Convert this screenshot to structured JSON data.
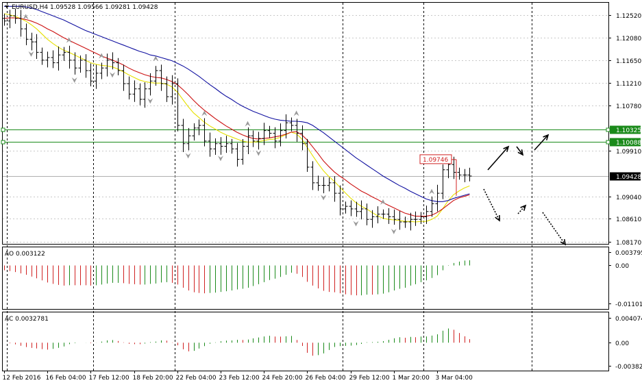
{
  "chart_data": {
    "type": "candlestick",
    "symbol_header": "EURUSD,H4  1.09528 1.09566 1.09281 1.09428",
    "price_axis": {
      "ticks": [
        "1.12520",
        "1.12080",
        "1.11650",
        "1.11210",
        "1.10780",
        "1.09910",
        "1.09040",
        "1.08610",
        "1.08170"
      ],
      "tick_values": [
        1.1252,
        1.1208,
        1.1165,
        1.1121,
        1.1078,
        1.0991,
        1.0904,
        1.0861,
        1.0817
      ],
      "ylim": [
        1.0813,
        1.1275
      ]
    },
    "time_axis": {
      "labels": [
        "12 Feb 2016",
        "16 Feb 04:00",
        "17 Feb 12:00",
        "18 Feb 20:00",
        "22 Feb 04:00",
        "23 Feb 12:00",
        "24 Feb 20:00",
        "26 Feb 04:00",
        "29 Feb 12:00",
        "1 Mar 20:00",
        "3 Mar 04:00"
      ],
      "label_bar_index": [
        0,
        8,
        16,
        24,
        32,
        40,
        48,
        56,
        64,
        72,
        80
      ],
      "bar_count": 87
    },
    "levels": [
      {
        "label": "1.10325",
        "value": 1.10325,
        "color": "#1a8a1a"
      },
      {
        "label": "1.10088",
        "value": 1.10088,
        "color": "#1a8a1a"
      }
    ],
    "current_price": {
      "label": "1.09428",
      "value": 1.09428
    },
    "annotation": {
      "label": "1.09746",
      "value": 1.09746,
      "color": "#d02020"
    },
    "candles_close": [
      1.124,
      1.125,
      1.1245,
      1.1225,
      1.1205,
      1.12,
      1.118,
      1.1165,
      1.117,
      1.116,
      1.1175,
      1.118,
      1.1165,
      1.115,
      1.1165,
      1.1145,
      1.1125,
      1.114,
      1.115,
      1.1165,
      1.116,
      1.1145,
      1.112,
      1.11,
      1.111,
      1.109,
      1.111,
      1.1125,
      1.1145,
      1.112,
      1.1095,
      1.112,
      1.104,
      1.1005,
      1.102,
      1.1035,
      1.104,
      1.101,
      1.0995,
      1.1005,
      1.1,
      1.1005,
      1.0995,
      1.0975,
      1.1,
      1.102,
      1.101,
      1.1015,
      1.103,
      1.1025,
      1.101,
      1.103,
      1.1045,
      1.104,
      1.1025,
      1.1005,
      1.096,
      1.093,
      1.0925,
      1.0925,
      1.093,
      1.091,
      1.088,
      1.0885,
      1.088,
      1.0875,
      1.088,
      1.086,
      1.0865,
      1.087,
      1.087,
      1.0865,
      1.086,
      1.0855,
      1.0855,
      1.086,
      1.086,
      1.0865,
      1.0875,
      1.089,
      1.091,
      1.0955,
      1.0965,
      1.095,
      1.0945,
      1.0945,
      1.0943
    ],
    "series": [
      {
        "name": "",
        "color": "#e6e000",
        "values": [
          1.1254,
          1.1252,
          1.1249,
          1.1245,
          1.124,
          1.1233,
          1.1225,
          1.1215,
          1.1205,
          1.1197,
          1.119,
          1.1184,
          1.118,
          1.1175,
          1.117,
          1.1165,
          1.116,
          1.1157,
          1.1155,
          1.1154,
          1.1152,
          1.1148,
          1.1143,
          1.1137,
          1.1132,
          1.1127,
          1.1124,
          1.1122,
          1.1121,
          1.1121,
          1.1119,
          1.1114,
          1.1104,
          1.109,
          1.1076,
          1.1064,
          1.1055,
          1.1046,
          1.1039,
          1.1033,
          1.1027,
          1.1022,
          1.1018,
          1.1014,
          1.101,
          1.1008,
          1.1008,
          1.1009,
          1.1011,
          1.1013,
          1.1014,
          1.1017,
          1.1022,
          1.1027,
          1.1024,
          1.1014,
          1.0998,
          1.0982,
          1.0967,
          1.0953,
          1.0942,
          1.0933,
          1.0922,
          1.0911,
          1.0901,
          1.0892,
          1.0885,
          1.088,
          1.0873,
          1.0867,
          1.0862,
          1.086,
          1.0859,
          1.0858,
          1.0856,
          1.0856,
          1.0855,
          1.0856,
          1.0856,
          1.086,
          1.0866,
          1.088,
          1.0895,
          1.0907,
          1.0914,
          1.092,
          1.0924
        ]
      },
      {
        "name": "",
        "color": "#cc1010",
        "values": [
          1.1245,
          1.1246,
          1.1246,
          1.1245,
          1.1243,
          1.124,
          1.1236,
          1.1231,
          1.1225,
          1.122,
          1.1214,
          1.1208,
          1.1203,
          1.1198,
          1.1193,
          1.1188,
          1.1183,
          1.1178,
          1.1173,
          1.1169,
          1.1165,
          1.1161,
          1.1156,
          1.115,
          1.1145,
          1.1141,
          1.1137,
          1.1134,
          1.1132,
          1.1131,
          1.1128,
          1.1124,
          1.1118,
          1.1109,
          1.1099,
          1.1088,
          1.1078,
          1.1069,
          1.1061,
          1.1053,
          1.1046,
          1.1039,
          1.1033,
          1.1027,
          1.1022,
          1.1018,
          1.1015,
          1.1014,
          1.1015,
          1.1016,
          1.1018,
          1.102,
          1.1023,
          1.1027,
          1.1028,
          1.1022,
          1.1012,
          1.0999,
          1.0986,
          1.0972,
          1.0961,
          1.0951,
          1.0943,
          1.0936,
          1.0928,
          1.0921,
          1.0914,
          1.0909,
          1.0903,
          1.0898,
          1.0892,
          1.0887,
          1.0882,
          1.0877,
          1.0872,
          1.0869,
          1.0866,
          1.0866,
          1.0866,
          1.0868,
          1.0873,
          1.088,
          1.0888,
          1.0896,
          1.0901,
          1.0904,
          1.0907
        ]
      },
      {
        "name": "",
        "color": "#1010a0",
        "values": [
          1.1268,
          1.1268,
          1.1268,
          1.1268,
          1.1267,
          1.1265,
          1.1262,
          1.1258,
          1.1254,
          1.125,
          1.1246,
          1.1242,
          1.1237,
          1.1232,
          1.1227,
          1.1222,
          1.1218,
          1.1214,
          1.121,
          1.1206,
          1.1202,
          1.1198,
          1.1194,
          1.119,
          1.1186,
          1.1182,
          1.1179,
          1.1175,
          1.1173,
          1.117,
          1.1167,
          1.1164,
          1.1159,
          1.1154,
          1.1148,
          1.1141,
          1.1134,
          1.1126,
          1.1118,
          1.1111,
          1.1103,
          1.1096,
          1.109,
          1.1083,
          1.1077,
          1.1072,
          1.1067,
          1.1063,
          1.1059,
          1.1055,
          1.1052,
          1.105,
          1.1049,
          1.1048,
          1.1048,
          1.1047,
          1.1045,
          1.104,
          1.1033,
          1.1026,
          1.1018,
          1.101,
          1.1002,
          1.0994,
          1.0986,
          1.0978,
          1.0971,
          1.0964,
          1.0957,
          1.095,
          1.0943,
          1.0937,
          1.0931,
          1.0925,
          1.092,
          1.0914,
          1.0909,
          1.0904,
          1.0899,
          1.0896,
          1.0894,
          1.0894,
          1.0896,
          1.09,
          1.0903,
          1.0906,
          1.0909
        ]
      }
    ],
    "fractals_up_bar_index": [
      4,
      12,
      18,
      28,
      37,
      45,
      54,
      70,
      79
    ],
    "fractals_down_bar_index": [
      5,
      13,
      20,
      27,
      34,
      40,
      47,
      59,
      65,
      72
    ],
    "ao": {
      "label": "AO 0.003122",
      "ticks": [
        "0.003795",
        "0.00",
        "-0.011013"
      ],
      "tick_values": [
        0.003795,
        0,
        -0.011013
      ],
      "ylim": [
        -0.0125,
        0.0052
      ]
    },
    "ac": {
      "label": "AC 0.0032781",
      "ticks": [
        "0.004074",
        "0.00",
        "-0.003821"
      ],
      "tick_values": [
        0.004074,
        0,
        -0.003821
      ],
      "ylim": [
        -0.0046,
        0.005
      ]
    }
  }
}
